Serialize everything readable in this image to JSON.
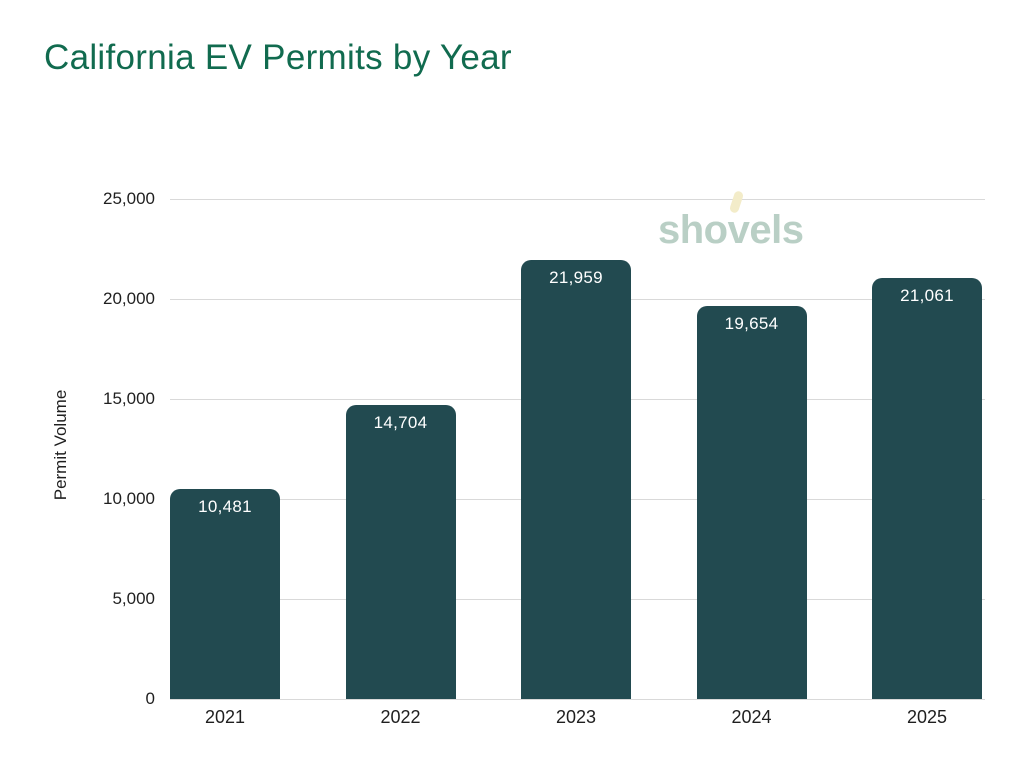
{
  "header": {
    "title": "California EV Permits by Year"
  },
  "watermark": {
    "part1": "sho",
    "part2": "v",
    "part3": "els"
  },
  "colors": {
    "background": "#ffffff",
    "title": "#116b4f",
    "bar": "#224a50",
    "bar_label": "#ffffff",
    "grid": "#d9d9d9",
    "axis_text": "#1f1f1f",
    "watermark_text": "#b9cfc5",
    "watermark_tick": "#f3ecc9"
  },
  "chart_data": {
    "type": "bar",
    "title": "California EV Permits by Year",
    "categories": [
      "2021",
      "2022",
      "2023",
      "2024",
      "2025"
    ],
    "values": [
      10481,
      14704,
      21959,
      19654,
      21061
    ],
    "value_labels": [
      "10,481",
      "14,704",
      "21,959",
      "19,654",
      "21,061"
    ],
    "xlabel": "",
    "ylabel": "Permit Volume",
    "ylim": [
      0,
      25000
    ],
    "ytick_step": 5000,
    "ytick_labels": [
      "0",
      "5,000",
      "10,000",
      "15,000",
      "20,000",
      "25,000"
    ],
    "grid": true,
    "legend": "none"
  }
}
